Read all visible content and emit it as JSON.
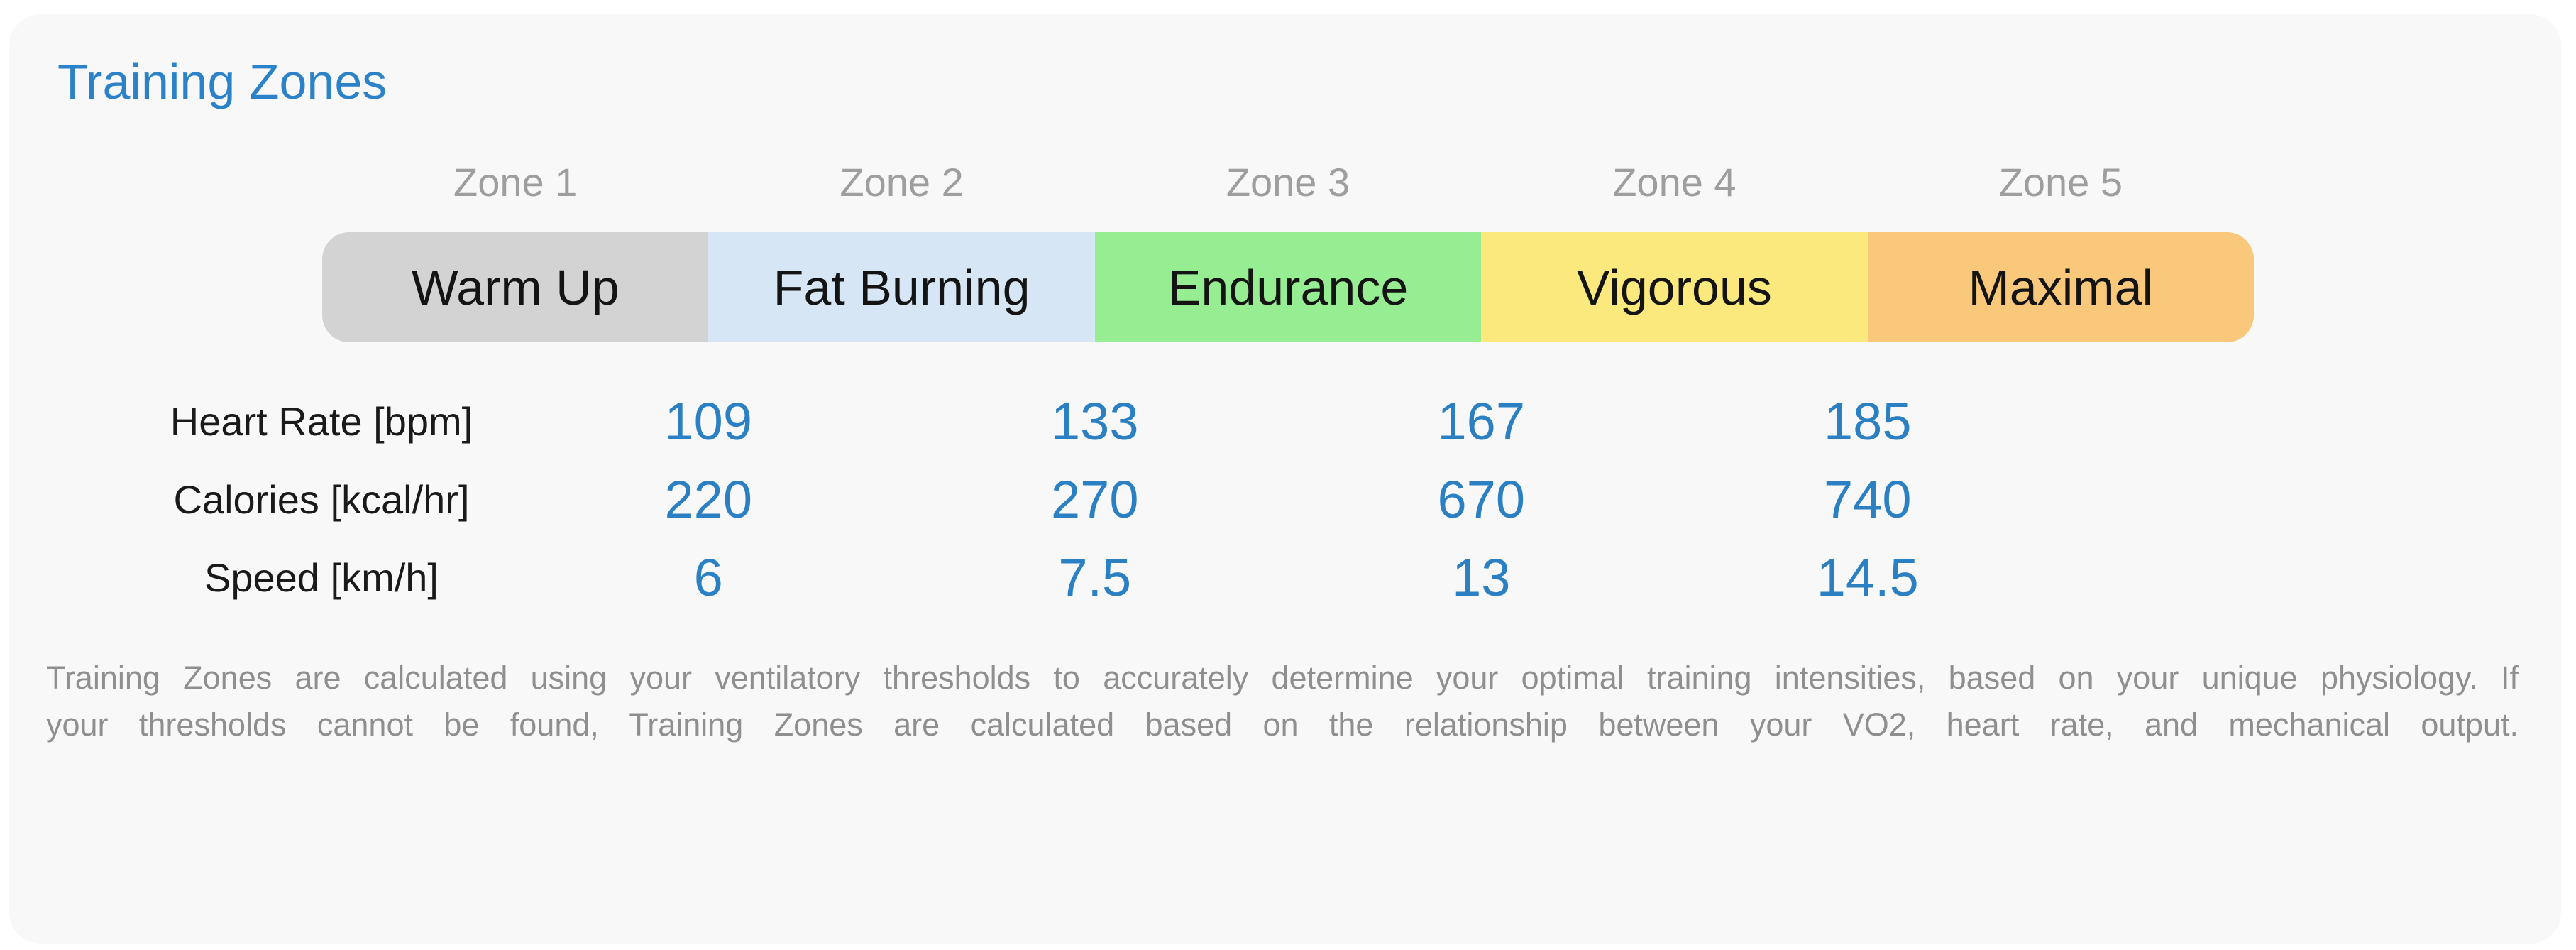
{
  "title": "Training Zones",
  "colors": {
    "page_bg": "#ffffff",
    "card_bg": "#f8f8f9",
    "title": "#2c82c9",
    "value": "#2a80c2",
    "zone_number_label": "#9e9e9e",
    "footer": "#8f8f8f",
    "zone_gray": "#d3d3d3",
    "zone_blue": "#d6e6f4",
    "zone_green": "#97ed92",
    "zone_yellow": "#fce97e",
    "zone_orange": "#f9c87a"
  },
  "zones": [
    {
      "label": "Zone 1",
      "name": "Warm Up",
      "color": "#d3d3d3"
    },
    {
      "label": "Zone 2",
      "name": "Fat Burning",
      "color": "#d6e6f4"
    },
    {
      "label": "Zone 3",
      "name": "Endurance",
      "color": "#97ed92"
    },
    {
      "label": "Zone 4",
      "name": "Vigorous",
      "color": "#fce97e"
    },
    {
      "label": "Zone 5",
      "name": "Maximal",
      "color": "#f9c87a"
    }
  ],
  "rows": [
    {
      "label": "Heart Rate [bpm]",
      "values": [
        "109",
        "133",
        "167",
        "185"
      ]
    },
    {
      "label": "Calories [kcal/hr]",
      "values": [
        "220",
        "270",
        "670",
        "740"
      ]
    },
    {
      "label": "Speed [km/h]",
      "values": [
        "6",
        "7.5",
        "13",
        "14.5"
      ]
    }
  ],
  "footer": {
    "line1": "Training Zones are calculated using your ventilatory thresholds to accurately determine your optimal training intensities, based on your unique physiology. If",
    "line2": "your thresholds cannot be found, Training Zones are calculated based on the relationship between your VO2, heart rate, and mechanical output."
  }
}
